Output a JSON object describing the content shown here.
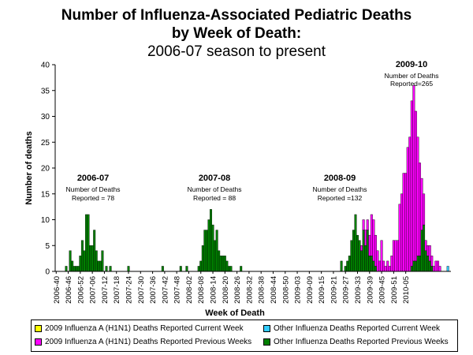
{
  "title": {
    "line1": "Number of Influenza-Associated Pediatric Deaths",
    "line2": "by Week of Death:",
    "line3": "2006-07 season to present"
  },
  "colors": {
    "ah1n1_current": "#ffff00",
    "ah1n1_previous": "#ff00ff",
    "other_current": "#33ccff",
    "other_previous": "#007f00"
  },
  "annotations": [
    {
      "season": "2006-07",
      "line1": "Number of Deaths",
      "line2": "Reported = 78"
    },
    {
      "season": "2007-08",
      "line1": "Number of Deaths",
      "line2": "Reported = 88"
    },
    {
      "season": "2008-09",
      "line1": "Number of Deaths",
      "line2": "Reported =132"
    },
    {
      "season": "2009-10",
      "line1": "Number of Deaths",
      "line2": "Reported=265"
    }
  ],
  "legend": {
    "ah1n1_current": "2009 Influenza A (H1N1) Deaths Reported Current Week",
    "ah1n1_previous": "2009 Influenza A (H1N1) Deaths Reported Previous Weeks",
    "other_current": "Other Influenza  Deaths Reported Current Week",
    "other_previous": "Other Influenza  Deaths Reported Previous Weeks"
  },
  "chart_data": {
    "type": "bar",
    "stacked": true,
    "title": "Number of Influenza-Associated Pediatric Deaths by Week of Death: 2006-07 season to present",
    "xlabel": "Week of Death",
    "ylabel": "Number of deaths",
    "ylim": [
      0,
      40
    ],
    "yticks": [
      0,
      5,
      10,
      15,
      20,
      25,
      30,
      35,
      40
    ],
    "grid": false,
    "legend_position": "bottom",
    "x_start": "2006-40",
    "x_end": "2010-08",
    "x_tick_labels": [
      "2006-40",
      "2006-46",
      "2006-52",
      "2007-06",
      "2007-12",
      "2007-18",
      "2007-24",
      "2007-30",
      "2007-36",
      "2007-42",
      "2007-48",
      "2008-02",
      "2008-08",
      "2008-14",
      "2008-20",
      "2008-26",
      "2008-32",
      "2008-38",
      "2008-44",
      "2008-50",
      "2009-03",
      "2009-09",
      "2009-15",
      "2009-21",
      "2009-27",
      "2009-33",
      "2009-39",
      "2009-45",
      "2009-51",
      "2010-05"
    ],
    "series": [
      {
        "name": "2009 Influenza A (H1N1) Deaths Reported Previous Weeks",
        "values": [
          0,
          0,
          0,
          0,
          0,
          0,
          0,
          0,
          0,
          0,
          0,
          0,
          0,
          0,
          0,
          0,
          0,
          0,
          0,
          0,
          0,
          0,
          0,
          0,
          0,
          0,
          0,
          0,
          0,
          0,
          0,
          0,
          0,
          0,
          0,
          0,
          0,
          0,
          0,
          0,
          0,
          0,
          0,
          0,
          0,
          0,
          0,
          0,
          0,
          0,
          0,
          0,
          0,
          0,
          0,
          0,
          0,
          0,
          0,
          0,
          0,
          0,
          0,
          0,
          0,
          0,
          0,
          0,
          0,
          0,
          0,
          0,
          0,
          0,
          0,
          0,
          0,
          0,
          0,
          0,
          0,
          0,
          0,
          0,
          0,
          0,
          0,
          0,
          0,
          0,
          0,
          0,
          0,
          0,
          0,
          0,
          0,
          0,
          0,
          0,
          0,
          0,
          0,
          0,
          0,
          0,
          0,
          0,
          0,
          0,
          0,
          0,
          0,
          0,
          0,
          0,
          0,
          0,
          0,
          0,
          0,
          0,
          0,
          0,
          0,
          0,
          0,
          0,
          0,
          0,
          0,
          0,
          0,
          0,
          0,
          0,
          0,
          0,
          0,
          0,
          0,
          0,
          0,
          0,
          0,
          0,
          0,
          0,
          0,
          0,
          0,
          0,
          1,
          2,
          3,
          2,
          4,
          8,
          8,
          6,
          4,
          2,
          6,
          2,
          1,
          2,
          1,
          3,
          6,
          6,
          6,
          13,
          15,
          19,
          19,
          24,
          26,
          32,
          34,
          29,
          23,
          18,
          10,
          6,
          2,
          2,
          3,
          2,
          1,
          2,
          2,
          1,
          0,
          0,
          0,
          0,
          0
        ]
      },
      {
        "name": "2009 Influenza A (H1N1) Deaths Reported Current Week",
        "values": [
          0,
          0,
          0,
          0,
          0,
          0,
          0,
          0,
          0,
          0,
          0,
          0,
          0,
          0,
          0,
          0,
          0,
          0,
          0,
          0,
          0,
          0,
          0,
          0,
          0,
          0,
          0,
          0,
          0,
          0,
          0,
          0,
          0,
          0,
          0,
          0,
          0,
          0,
          0,
          0,
          0,
          0,
          0,
          0,
          0,
          0,
          0,
          0,
          0,
          0,
          0,
          0,
          0,
          0,
          0,
          0,
          0,
          0,
          0,
          0,
          0,
          0,
          0,
          0,
          0,
          0,
          0,
          0,
          0,
          0,
          0,
          0,
          0,
          0,
          0,
          0,
          0,
          0,
          0,
          0,
          0,
          0,
          0,
          0,
          0,
          0,
          0,
          0,
          0,
          0,
          0,
          0,
          0,
          0,
          0,
          0,
          0,
          0,
          0,
          0,
          0,
          0,
          0,
          0,
          0,
          0,
          0,
          0,
          0,
          0,
          0,
          0,
          0,
          0,
          0,
          0,
          0,
          0,
          0,
          0,
          0,
          0,
          0,
          0,
          0,
          0,
          0,
          0,
          0,
          0,
          0,
          0,
          0,
          0,
          0,
          0,
          0,
          0,
          0,
          0,
          0,
          0,
          0,
          0,
          0,
          0,
          0,
          0,
          0,
          0,
          0,
          0,
          0,
          0,
          0,
          0,
          0,
          0,
          0,
          0,
          0,
          0,
          0,
          0,
          0,
          0,
          0,
          0,
          0,
          0,
          0,
          0,
          0,
          0,
          0,
          0,
          0,
          0,
          0,
          0,
          0,
          0,
          0,
          0,
          0,
          0,
          0,
          0,
          0,
          0,
          0,
          0,
          0,
          0,
          0,
          0,
          0
        ]
      },
      {
        "name": "Other Influenza  Deaths Reported Previous Weeks",
        "values": [
          0,
          0,
          0,
          0,
          0,
          1,
          0,
          4,
          2,
          1,
          1,
          1,
          3,
          6,
          4,
          11,
          11,
          5,
          5,
          8,
          4,
          2,
          2,
          4,
          0,
          1,
          0,
          1,
          0,
          0,
          0,
          0,
          0,
          0,
          0,
          0,
          1,
          0,
          0,
          0,
          0,
          0,
          0,
          0,
          0,
          0,
          0,
          0,
          0,
          0,
          0,
          0,
          0,
          1,
          0,
          0,
          0,
          0,
          0,
          0,
          0,
          0,
          1,
          0,
          0,
          1,
          0,
          0,
          0,
          0,
          0,
          1,
          2,
          5,
          8,
          8,
          10,
          12,
          9,
          6,
          8,
          4,
          3,
          3,
          3,
          2,
          1,
          1,
          0,
          0,
          0,
          0,
          1,
          0,
          0,
          0,
          0,
          0,
          0,
          0,
          0,
          0,
          0,
          0,
          0,
          0,
          0,
          0,
          0,
          0,
          0,
          0,
          0,
          0,
          0,
          0,
          0,
          0,
          0,
          0,
          0,
          0,
          0,
          0,
          0,
          0,
          0,
          0,
          0,
          0,
          0,
          0,
          0,
          0,
          0,
          0,
          0,
          0,
          0,
          0,
          0,
          0,
          2,
          0,
          1,
          2,
          3,
          6,
          8,
          11,
          7,
          6,
          4,
          8,
          5,
          8,
          3,
          3,
          2,
          1,
          0,
          0,
          0,
          0,
          0,
          0,
          0,
          0,
          0,
          0,
          0,
          0,
          0,
          0,
          0,
          0,
          0,
          1,
          2,
          2,
          3,
          3,
          8,
          9,
          4,
          3,
          2,
          1,
          0,
          0,
          0,
          0,
          0,
          0,
          0,
          0,
          0
        ]
      },
      {
        "name": "Other Influenza  Deaths Reported Current Week",
        "values": [
          0,
          0,
          0,
          0,
          0,
          0,
          0,
          0,
          0,
          0,
          0,
          0,
          0,
          0,
          0,
          0,
          0,
          0,
          0,
          0,
          0,
          0,
          0,
          0,
          0,
          0,
          0,
          0,
          0,
          0,
          0,
          0,
          0,
          0,
          0,
          0,
          0,
          0,
          0,
          0,
          0,
          0,
          0,
          0,
          0,
          0,
          0,
          0,
          0,
          0,
          0,
          0,
          0,
          0,
          0,
          0,
          0,
          0,
          0,
          0,
          0,
          0,
          0,
          0,
          0,
          0,
          0,
          0,
          0,
          0,
          0,
          0,
          0,
          0,
          0,
          0,
          0,
          0,
          0,
          0,
          0,
          0,
          0,
          0,
          0,
          0,
          0,
          0,
          0,
          0,
          0,
          0,
          0,
          0,
          0,
          0,
          0,
          0,
          0,
          0,
          0,
          0,
          0,
          0,
          0,
          0,
          0,
          0,
          0,
          0,
          0,
          0,
          0,
          0,
          0,
          0,
          0,
          0,
          0,
          0,
          0,
          0,
          0,
          0,
          0,
          0,
          0,
          0,
          0,
          0,
          0,
          0,
          0,
          0,
          0,
          0,
          0,
          0,
          0,
          0,
          0,
          0,
          0,
          0,
          0,
          0,
          0,
          0,
          0,
          0,
          0,
          0,
          0,
          0,
          0,
          0,
          0,
          0,
          0,
          0,
          0,
          0,
          0,
          0,
          0,
          0,
          0,
          0,
          0,
          0,
          0,
          0,
          0,
          0,
          0,
          0,
          0,
          0,
          0,
          0,
          0,
          0,
          0,
          0,
          0,
          0,
          0,
          0,
          0,
          0,
          0,
          0,
          0,
          0,
          0,
          1,
          0
        ]
      }
    ]
  }
}
